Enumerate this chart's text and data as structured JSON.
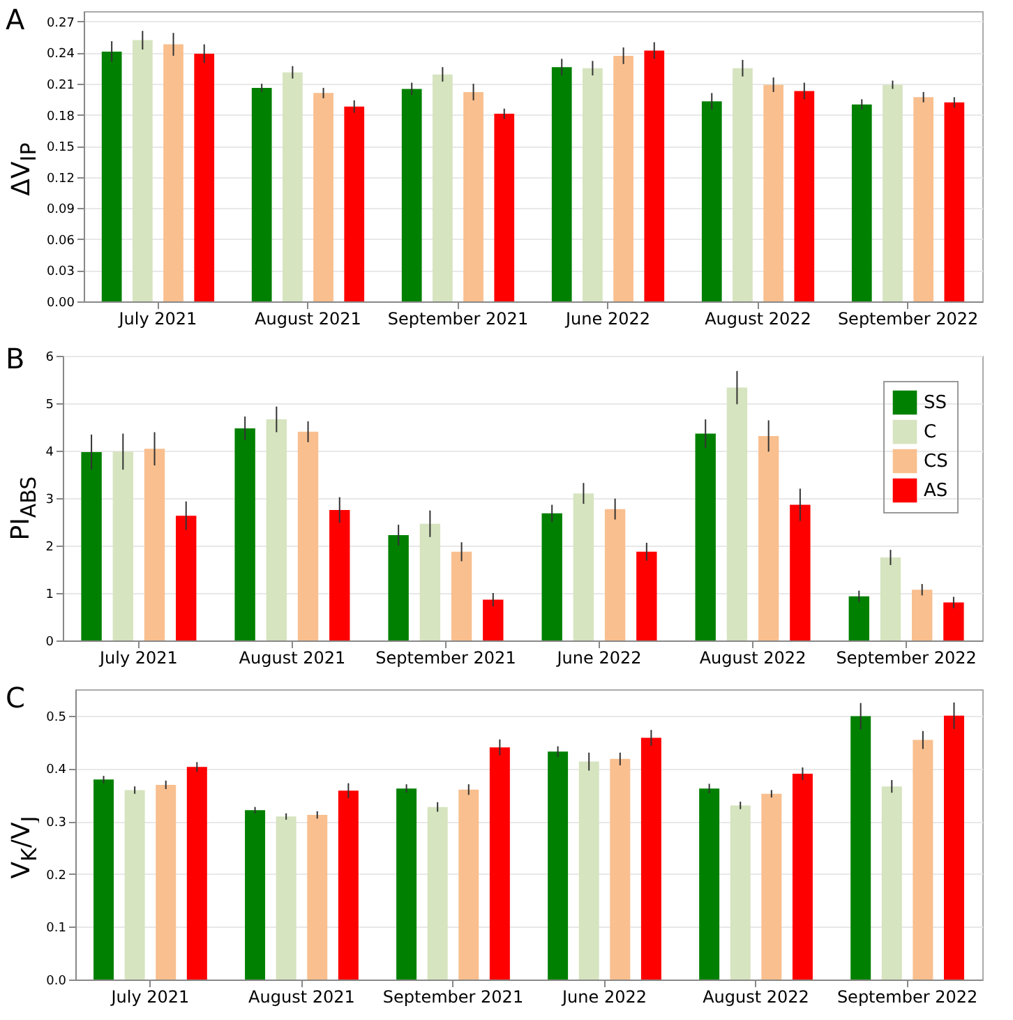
{
  "chart_data": [
    {
      "type": "bar",
      "annotations": [
        "A"
      ],
      "ylabel": "ΔV$_{IP}$",
      "categories": [
        "July 2021",
        "August 2021",
        "September 2021",
        "June 2022",
        "August 2022",
        "September 2022"
      ],
      "ylim": [
        0,
        0.28
      ],
      "yticks": [
        {
          "value": 0,
          "label": "0.00"
        },
        0.03,
        0.06,
        0.09,
        0.12,
        0.15,
        0.18,
        0.21,
        0.24,
        0.27
      ],
      "grid": "y",
      "series": [
        {
          "color": "#008000",
          "values": [
            0.241,
            0.206,
            0.205,
            0.226,
            0.193,
            0.19
          ],
          "errors": [
            0.01,
            0.004,
            0.006,
            0.008,
            0.008,
            0.005
          ]
        },
        {
          "color": "#d6e4bf",
          "values": [
            0.252,
            0.221,
            0.219,
            0.225,
            0.225,
            0.209
          ],
          "errors": [
            0.009,
            0.006,
            0.007,
            0.007,
            0.008,
            0.004
          ]
        },
        {
          "color": "#f9bf8f",
          "values": [
            0.248,
            0.201,
            0.202,
            0.237,
            0.209,
            0.197
          ],
          "errors": [
            0.011,
            0.005,
            0.008,
            0.008,
            0.007,
            0.005
          ]
        },
        {
          "color": "#ff0000",
          "values": [
            0.239,
            0.188,
            0.181,
            0.242,
            0.203,
            0.192
          ],
          "errors": [
            0.009,
            0.006,
            0.005,
            0.008,
            0.008,
            0.005
          ]
        }
      ]
    },
    {
      "type": "bar",
      "annotations": [
        "B"
      ],
      "ylabel": "PI$_{ABS}$",
      "categories": [
        "July 2021",
        "August 2021",
        "September 2021",
        "June 2022",
        "August 2022",
        "September 2022"
      ],
      "ylim": [
        0,
        6
      ],
      "yticks": [
        0,
        1,
        2,
        3,
        4,
        5,
        6
      ],
      "grid": "y",
      "legend": "top right",
      "series": [
        {
          "name": "SS",
          "color": "#008000",
          "values": [
            3.97,
            4.47,
            2.22,
            2.68,
            4.36,
            0.93
          ],
          "errors": [
            0.37,
            0.25,
            0.22,
            0.18,
            0.3,
            0.12
          ]
        },
        {
          "name": "C",
          "color": "#d6e4bf",
          "values": [
            3.98,
            4.66,
            2.46,
            3.1,
            5.33,
            1.75
          ],
          "errors": [
            0.38,
            0.27,
            0.28,
            0.22,
            0.35,
            0.16
          ]
        },
        {
          "name": "CS",
          "color": "#f9bf8f",
          "values": [
            4.04,
            4.4,
            1.87,
            2.77,
            4.31,
            1.07
          ],
          "errors": [
            0.35,
            0.22,
            0.2,
            0.22,
            0.33,
            0.12
          ]
        },
        {
          "name": "AS",
          "color": "#ff0000",
          "values": [
            2.63,
            2.75,
            0.86,
            1.87,
            2.86,
            0.8
          ],
          "errors": [
            0.3,
            0.27,
            0.14,
            0.19,
            0.34,
            0.12
          ]
        }
      ]
    },
    {
      "type": "bar",
      "annotations": [
        "C"
      ],
      "ylabel": "V$_{K}$/V$_{J}$",
      "categories": [
        "July 2021",
        "August 2021",
        "September 2021",
        "June 2022",
        "August 2022",
        "September 2022"
      ],
      "ylim": [
        0,
        0.55
      ],
      "yticks": [
        {
          "value": 0,
          "label": "0.0"
        },
        0.1,
        0.2,
        0.3,
        0.4,
        0.5
      ],
      "grid": "y",
      "series": [
        {
          "color": "#008000",
          "values": [
            0.379,
            0.321,
            0.362,
            0.432,
            0.362,
            0.499
          ],
          "errors": [
            0.007,
            0.006,
            0.008,
            0.01,
            0.009,
            0.025
          ]
        },
        {
          "color": "#d6e4bf",
          "values": [
            0.359,
            0.309,
            0.327,
            0.413,
            0.33,
            0.366
          ],
          "errors": [
            0.007,
            0.006,
            0.009,
            0.017,
            0.007,
            0.012
          ]
        },
        {
          "color": "#f9bf8f",
          "values": [
            0.369,
            0.312,
            0.36,
            0.418,
            0.352,
            0.454
          ],
          "errors": [
            0.008,
            0.007,
            0.01,
            0.012,
            0.007,
            0.017
          ]
        },
        {
          "color": "#ff0000",
          "values": [
            0.403,
            0.358,
            0.44,
            0.458,
            0.39,
            0.5
          ],
          "errors": [
            0.009,
            0.014,
            0.015,
            0.015,
            0.012,
            0.025
          ]
        }
      ]
    }
  ]
}
